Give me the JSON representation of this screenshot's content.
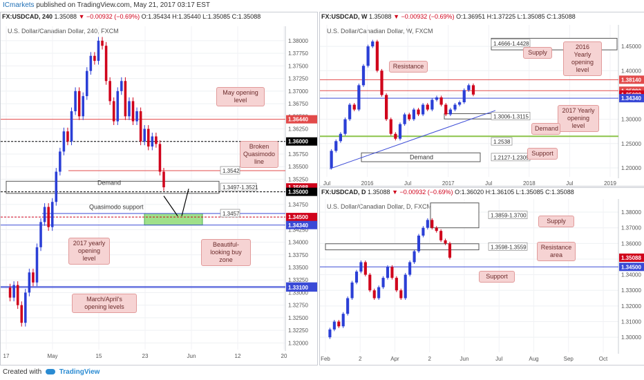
{
  "header": {
    "brand": "ICmarkets",
    "published": "published on TradingView.com, May 21, 2017 03:17 EST"
  },
  "footer": {
    "created": "Created with",
    "tv": "TradingView"
  },
  "panels": {
    "left": {
      "symbol": "FX:USDCAD, 240",
      "price": "1.35088",
      "change": "▼ −0.00932 (−0.69%)",
      "ohlc": "O:1.35434 H:1.35440 L:1.35085 C:1.35088",
      "title": "U.S. Dollar/Canadian Dollar, 240, FXCM",
      "notes": {
        "may_open": "May opening level",
        "broken_qm": "Broken Quasimodo line",
        "demand": "Demand",
        "qm_support": "Quasimodo support",
        "yearly_2017": "2017 yearly opening level",
        "buy_zone": "Beautiful-looking buy zone",
        "march_april": "March/April's opening levels"
      },
      "boxes": {
        "b3542": "1.3542",
        "b3497": "1.3497-1.3521",
        "b3457": "1.3457"
      },
      "price_tags": {
        "t6440": "1.36440",
        "t6000": "1.36000",
        "t5088": "1.35088",
        "t5000": "1.35000",
        "t4500": "1.34500",
        "t4340": "1.34340",
        "t3120": "1.33120",
        "t3100": "1.33100"
      }
    },
    "weekly": {
      "symbol": "FX:USDCAD, W",
      "price": "1.35088",
      "change": "▼ −0.00932 (−0.69%)",
      "ohlc": "O:1.36951 H:1.37225 L:1.35085 C:1.35088",
      "title": "U.S. Dollar/Canadian Dollar, W, FXCM",
      "notes": {
        "resistance": "Resistance",
        "supply": "Supply",
        "yearly_2016": "2016 Yearly opening level",
        "yearly_2017": "2017 Yearly opening level",
        "demand": "Demand",
        "support": "Support",
        "demand2": "Demand"
      },
      "boxes": {
        "b4666": "1.4666-1.4428",
        "b3006": "1.3006-1.3115",
        "b2538": "1.2538",
        "b2127": "1.2127-1.2309"
      },
      "price_tags": {
        "t8140": "1.38140",
        "t5880": "1.35880",
        "t5088": "1.35088",
        "t4340": "1.34340"
      }
    },
    "daily": {
      "symbol": "FX:USDCAD, D",
      "price": "1.35088",
      "change": "▼ −0.00932 (−0.69%)",
      "ohlc": "O:1.36020 H:1.36105 L:1.35085 C:1.35088",
      "title": "U.S. Dollar/Canadian Dollar, D, FXCM",
      "notes": {
        "supply": "Supply",
        "resistance": "Resistance area",
        "support": "Support"
      },
      "boxes": {
        "b3859": "1.3859-1.3700",
        "b3598": "1.3598-1.3559"
      },
      "price_tags": {
        "t5088": "1.35088",
        "t4500": "1.34500"
      }
    }
  },
  "chart_data": [
    {
      "type": "candlestick",
      "title": "U.S. Dollar/Canadian Dollar, 240, FXCM",
      "ylim": [
        1.3195,
        1.3815
      ],
      "y_ticks": [
        "1.38000",
        "1.37750",
        "1.37500",
        "1.37250",
        "1.37000",
        "1.36750",
        "1.36500",
        "1.36250",
        "1.36000",
        "1.35750",
        "1.35500",
        "1.35250",
        "1.35000",
        "1.34750",
        "1.34500",
        "1.34250",
        "1.34000",
        "1.33750",
        "1.33500",
        "1.33250",
        "1.33000",
        "1.32750",
        "1.32500",
        "1.32250",
        "1.32000"
      ],
      "x_ticks": [
        "17",
        "May",
        "15",
        "23",
        "Jun",
        "12",
        "20"
      ],
      "price_path": [
        1.331,
        1.329,
        1.3315,
        1.3275,
        1.324,
        1.33,
        1.334,
        1.332,
        1.339,
        1.344,
        1.347,
        1.343,
        1.348,
        1.354,
        1.358,
        1.362,
        1.36,
        1.366,
        1.37,
        1.365,
        1.369,
        1.374,
        1.377,
        1.376,
        1.38,
        1.379,
        1.372,
        1.368,
        1.364,
        1.37,
        1.372,
        1.365,
        1.368,
        1.364,
        1.366,
        1.36,
        1.3625,
        1.359,
        1.361,
        1.3595,
        1.354,
        1.3509
      ],
      "levels": [
        1.3644,
        1.36,
        1.3542,
        1.35,
        1.345,
        1.3434,
        1.3312,
        1.331
      ]
    },
    {
      "type": "candlestick",
      "title": "U.S. Dollar/Canadian Dollar, W, FXCM",
      "ylim": [
        1.19,
        1.48
      ],
      "y_ticks": [
        "1.45000",
        "1.40000",
        "1.35000",
        "1.30000",
        "1.25000",
        "1.20000"
      ],
      "x_ticks": [
        "Jul",
        "2016",
        "Jul",
        "2017",
        "Jul",
        "2018",
        "Jul",
        "2019"
      ],
      "price_path": [
        1.2,
        1.235,
        1.255,
        1.27,
        1.3,
        1.33,
        1.32,
        1.37,
        1.41,
        1.45,
        1.46,
        1.4,
        1.35,
        1.3,
        1.27,
        1.26,
        1.29,
        1.31,
        1.3,
        1.32,
        1.31,
        1.33,
        1.32,
        1.34,
        1.345,
        1.33,
        1.31,
        1.32,
        1.33,
        1.335,
        1.36,
        1.37,
        1.3509
      ],
      "levels": [
        1.3814,
        1.3588,
        1.3434,
        1.265
      ]
    },
    {
      "type": "candlestick",
      "title": "U.S. Dollar/Canadian Dollar, D, FXCM",
      "ylim": [
        1.293,
        1.384
      ],
      "y_ticks": [
        "1.38000",
        "1.37000",
        "1.36000",
        "1.35000",
        "1.34000",
        "1.33000",
        "1.32000",
        "1.31000",
        "1.30000"
      ],
      "x_ticks": [
        "Feb",
        "2",
        "Apr",
        "2",
        "Jun",
        "Jul",
        "Aug",
        "Sep",
        "Oct"
      ],
      "price_path": [
        1.3,
        1.305,
        1.31,
        1.307,
        1.315,
        1.325,
        1.335,
        1.342,
        1.348,
        1.34,
        1.33,
        1.325,
        1.332,
        1.338,
        1.345,
        1.338,
        1.33,
        1.325,
        1.34,
        1.348,
        1.355,
        1.365,
        1.37,
        1.375,
        1.37,
        1.368,
        1.362,
        1.36,
        1.3509
      ],
      "levels": [
        1.345
      ]
    }
  ]
}
